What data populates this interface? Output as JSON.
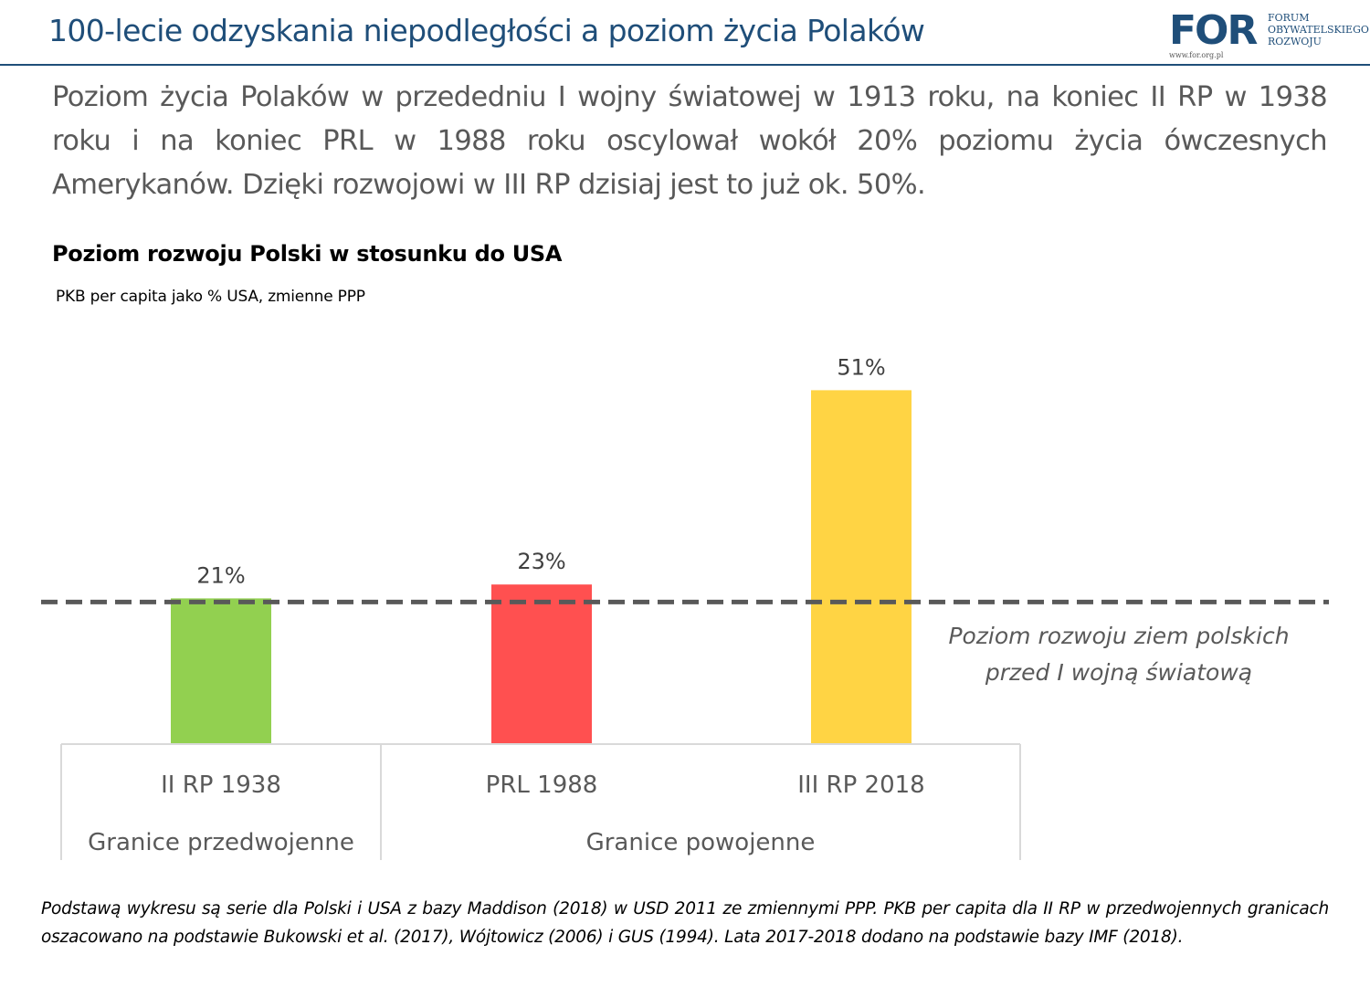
{
  "header": {
    "title": "100-lecie odzyskania niepodległości a poziom życia Polaków",
    "logo": {
      "mark": "FOR",
      "line1": "FORUM",
      "line2": "OBYWATELSKIEGO",
      "line3": "ROZWOJU",
      "url": "www.for.org.pl"
    }
  },
  "lead_text": "Poziom życia Polaków w przededniu I wojny światowej w 1913 roku, na koniec II RP w 1938 roku i na koniec PRL w 1988 roku oscylował wokół 20% poziomu życia ówczesnych Amerykanów. Dzięki rozwojowi w III RP dzisiaj jest to już ok. 50%.",
  "chart_data": {
    "type": "bar",
    "title": "Poziom rozwoju Polski w stosunku do USA",
    "subtitle": "PKB per capita jako % USA, zmienne PPP",
    "categories": [
      "II RP 1938",
      "PRL 1988",
      "III RP 2018"
    ],
    "values": [
      21,
      23,
      51
    ],
    "data_labels": [
      "21%",
      "23%",
      "51%"
    ],
    "colors": [
      "#92d050",
      "#ff5050",
      "#ffd444"
    ],
    "groups": [
      {
        "label": "Granice przedwojenne",
        "categories": [
          "II RP 1938"
        ]
      },
      {
        "label": "Granice powojenne",
        "categories": [
          "PRL 1988",
          "III RP 2018"
        ]
      }
    ],
    "reference_line": {
      "value": 21,
      "label_line1": "Poziom rozwoju ziem polskich",
      "label_line2": "przed I wojną światową",
      "color": "#595959"
    },
    "grid": false
  },
  "footnote": "Podstawą wykresu są serie dla Polski i USA z bazy Maddison (2018) w USD 2011 ze zmiennymi PPP. PKB per capita dla II RP w przedwojennych granicach oszacowano na podstawie Bukowski et al. (2017), Wójtowicz (2006) i GUS (1994). Lata 2017-2018 dodano na podstawie bazy IMF (2018)."
}
